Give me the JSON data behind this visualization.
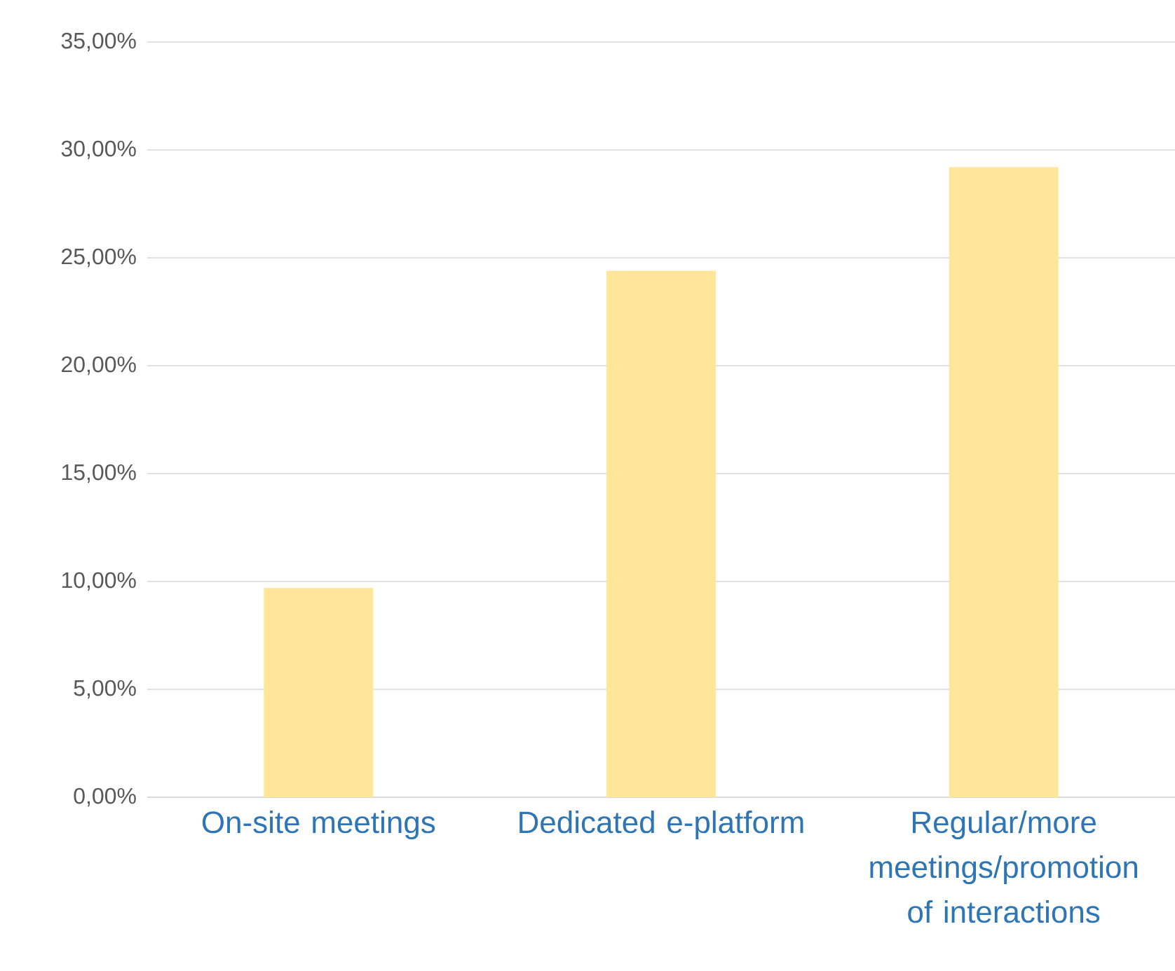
{
  "chart_data": {
    "type": "bar",
    "categories": [
      "On-site meetings",
      "Dedicated e-platform",
      "Regular/more meetings/promotion of interactions"
    ],
    "values": [
      9.7,
      24.4,
      29.2
    ],
    "color": "#ffe699",
    "ylim": [
      0,
      35
    ],
    "yticks": [
      {
        "value": 0,
        "label": "0,00%"
      },
      {
        "value": 5,
        "label": "5,00%"
      },
      {
        "value": 10,
        "label": "10,00%"
      },
      {
        "value": 15,
        "label": "15,00%"
      },
      {
        "value": 20,
        "label": "20,00%"
      },
      {
        "value": 25,
        "label": "25,00%"
      },
      {
        "value": 30,
        "label": "30,00%"
      },
      {
        "value": 35,
        "label": "35,00%"
      }
    ],
    "grid": "y"
  }
}
